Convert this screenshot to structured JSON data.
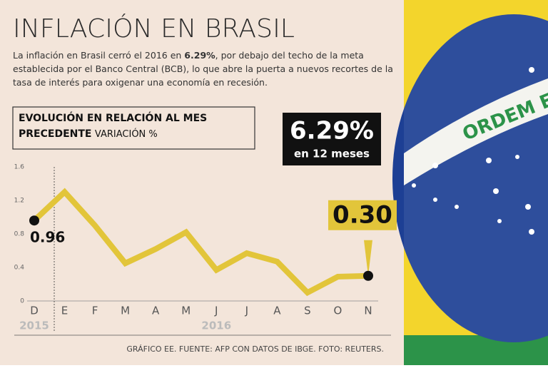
{
  "chart_data": {
    "type": "line",
    "title": "INFLACIÓN EN BRASIL",
    "description": {
      "before": "La inflación en Brasil cerró el 2016 en ",
      "bold": "6.29%",
      "after": ", por debajo del techo de la meta establecida por el Banco Central (BCB), lo que abre la puerta a nuevos recortes de la tasa de interés para oxigenar una economía en recesión."
    },
    "subtitle": "EVOLUCIÓN EN RELACIÓN AL MES PRECEDENTE",
    "y_label": "VARIACIÓN   %",
    "highlight": {
      "value": "6.29%",
      "label": "en 12 meses"
    },
    "categories": [
      "D",
      "E",
      "F",
      "M",
      "A",
      "M",
      "J",
      "J",
      "A",
      "S",
      "O",
      "N"
    ],
    "year_labels": [
      "2015",
      "2016"
    ],
    "values": [
      0.96,
      1.3,
      0.9,
      0.45,
      0.62,
      0.82,
      0.37,
      0.57,
      0.47,
      0.1,
      0.29,
      0.3
    ],
    "value_labels": [
      "0.96",
      null,
      null,
      null,
      null,
      null,
      null,
      null,
      null,
      null,
      null,
      "0.30"
    ],
    "color": "#e2c53a",
    "ylim": [
      0,
      1.6
    ],
    "yticks": [
      0,
      0.4,
      0.8,
      1.2,
      1.6
    ],
    "source": "GRÁFICO EE. FUENTE: AFP CON DATOS DE IBGE. FOTO: REUTERS.",
    "photo_text": "ORDEM E PRO"
  }
}
